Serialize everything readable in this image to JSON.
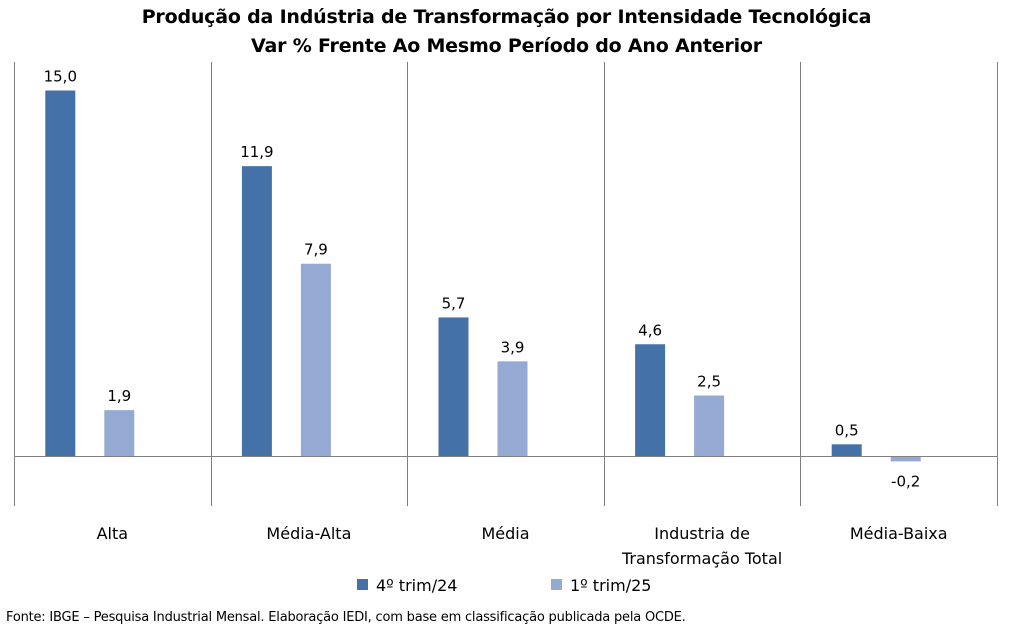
{
  "chart_data": {
    "type": "bar",
    "title": "Produção da Indústria de Transformação por Intensidade Tecnológica",
    "subtitle": "Var % Frente Ao Mesmo Período do Ano Anterior",
    "categories": [
      [
        "Alta"
      ],
      [
        "Média-Alta"
      ],
      [
        "Média"
      ],
      [
        "Industria de",
        "Transformação Total"
      ],
      [
        "Média-Baixa"
      ]
    ],
    "series": [
      {
        "name": "4º trim/24",
        "color": "#4472a8",
        "values": [
          15.0,
          11.9,
          5.7,
          4.6,
          0.5
        ],
        "labels": [
          "15,0",
          "11,9",
          "5,7",
          "4,6",
          "0,5"
        ]
      },
      {
        "name": "1º trim/25",
        "color": "#95aad2",
        "values": [
          1.9,
          7.9,
          3.9,
          2.5,
          -0.2
        ],
        "labels": [
          "1,9",
          "7,9",
          "3,9",
          "2,5",
          "-0,2"
        ]
      }
    ],
    "ylim": [
      -2.0,
      16.2
    ],
    "grid": "vertical category separators",
    "legend": "bottom-center"
  },
  "footnote": "Fonte: IBGE – Pesquisa Industrial Mensal. Elaboração IEDI, com base em classificação publicada pela OCDE."
}
